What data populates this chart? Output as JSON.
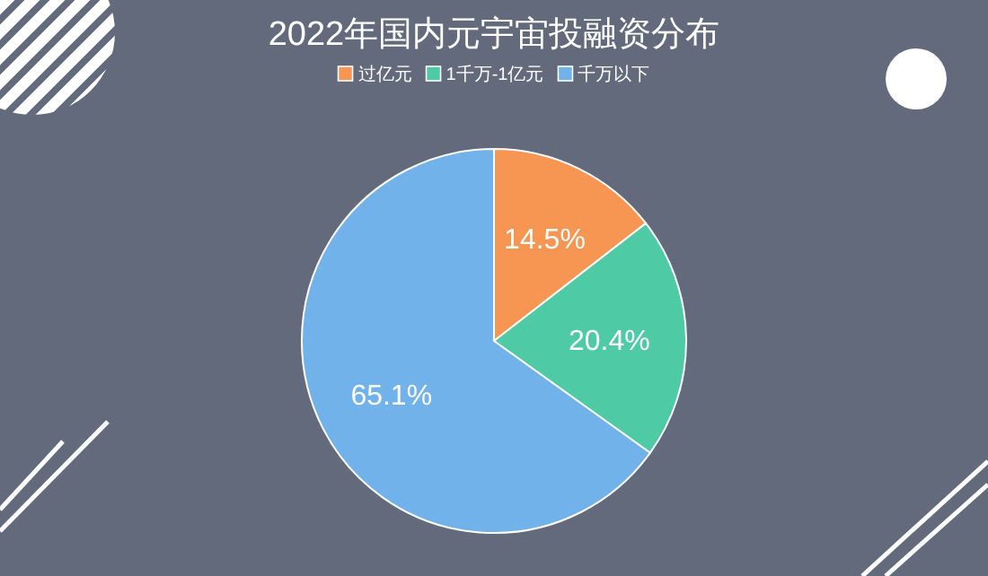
{
  "chart_data": {
    "type": "pie",
    "title": "2022年国内元宇宙投融资分布",
    "categories": [
      "过亿元",
      "1千万-1亿元",
      "千万以下"
    ],
    "values": [
      14.5,
      20.4,
      65.1
    ],
    "colors": [
      "#f79552",
      "#4ecaa4",
      "#72b2ea"
    ],
    "value_labels": [
      "14.5%",
      "20.4%",
      "65.1%"
    ],
    "legend": "top"
  }
}
